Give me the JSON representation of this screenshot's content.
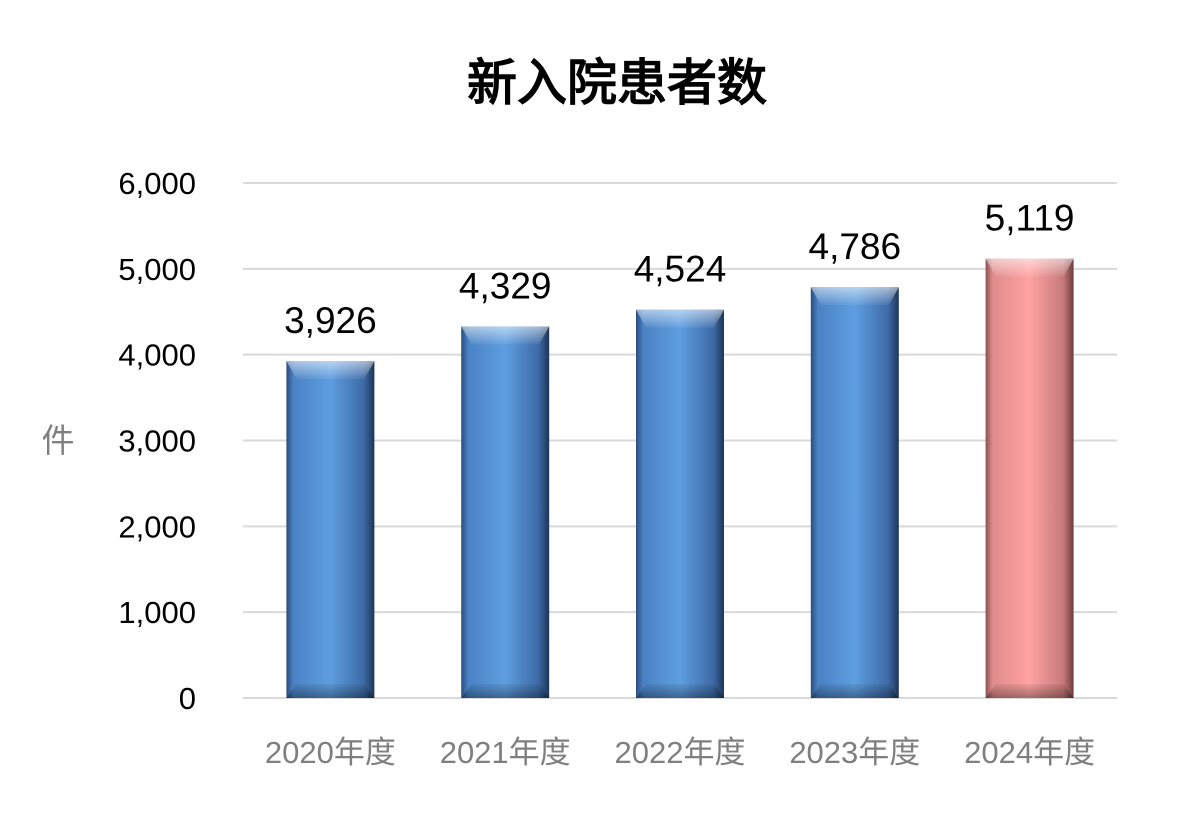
{
  "chart_data": {
    "type": "bar",
    "title": "新入院患者数",
    "ylabel": "件",
    "xlabel": "",
    "categories": [
      "2020年度",
      "2021年度",
      "2022年度",
      "2023年度",
      "2024年度"
    ],
    "series": [
      {
        "values": [
          3926,
          4329,
          4524,
          4786,
          5119
        ]
      }
    ],
    "data_labels": [
      "3,926",
      "4,329",
      "4,524",
      "4,786",
      "5,119"
    ],
    "ylim": [
      0,
      6000
    ],
    "yticks": [
      0,
      1000,
      2000,
      3000,
      4000,
      5000,
      6000
    ],
    "ytick_labels": [
      "0",
      "1,000",
      "2,000",
      "3,000",
      "4,000",
      "5,000",
      "6,000"
    ],
    "grid": true,
    "legend": "none",
    "colors": {
      "bar": "#5b9bd5",
      "highlight": "#ff9f9f",
      "highlight_category": "2024年度"
    }
  }
}
